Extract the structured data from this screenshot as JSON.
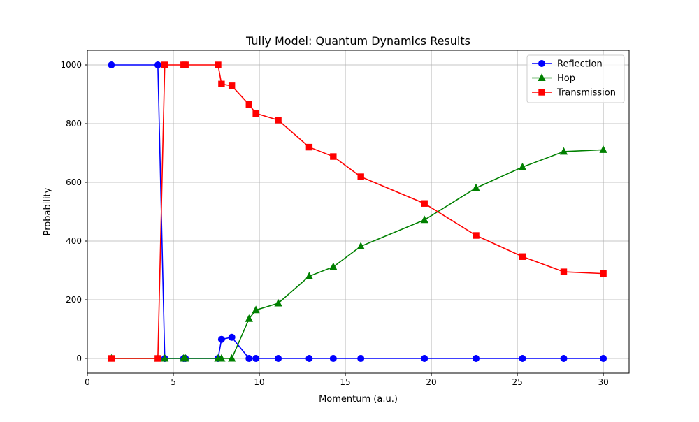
{
  "chart_data": {
    "type": "line",
    "title": "Tully Model: Quantum Dynamics Results",
    "xlabel": "Momentum (a.u.)",
    "ylabel": "Probability",
    "xlim": [
      0,
      31.5
    ],
    "ylim": [
      -50,
      1050
    ],
    "xticks": [
      0,
      5,
      10,
      15,
      20,
      25,
      30
    ],
    "yticks": [
      0,
      200,
      400,
      600,
      800,
      1000
    ],
    "grid": true,
    "legend_position": "top-right",
    "x": [
      1.4,
      4.1,
      4.5,
      5.6,
      5.7,
      7.6,
      7.8,
      8.4,
      9.4,
      9.8,
      11.1,
      12.9,
      14.3,
      15.9,
      19.6,
      22.6,
      25.3,
      27.7,
      30.0
    ],
    "series": [
      {
        "name": "Reflection",
        "color": "#0000ff",
        "marker": "circle",
        "values": [
          1000,
          1000,
          0,
          0,
          0,
          0,
          65,
          72,
          0,
          0,
          0,
          0,
          0,
          0,
          0,
          0,
          0,
          0,
          0
        ]
      },
      {
        "name": "Hop",
        "color": "#008000",
        "marker": "triangle",
        "values": [
          0,
          0,
          0,
          0,
          0,
          0,
          0,
          0,
          135,
          165,
          188,
          280,
          312,
          382,
          472,
          581,
          652,
          705,
          711
        ]
      },
      {
        "name": "Transmission",
        "color": "#ff0000",
        "marker": "square",
        "values": [
          0,
          0,
          1000,
          1000,
          1000,
          1000,
          935,
          929,
          865,
          835,
          812,
          720,
          688,
          619,
          528,
          419,
          347,
          295,
          289
        ]
      }
    ]
  }
}
